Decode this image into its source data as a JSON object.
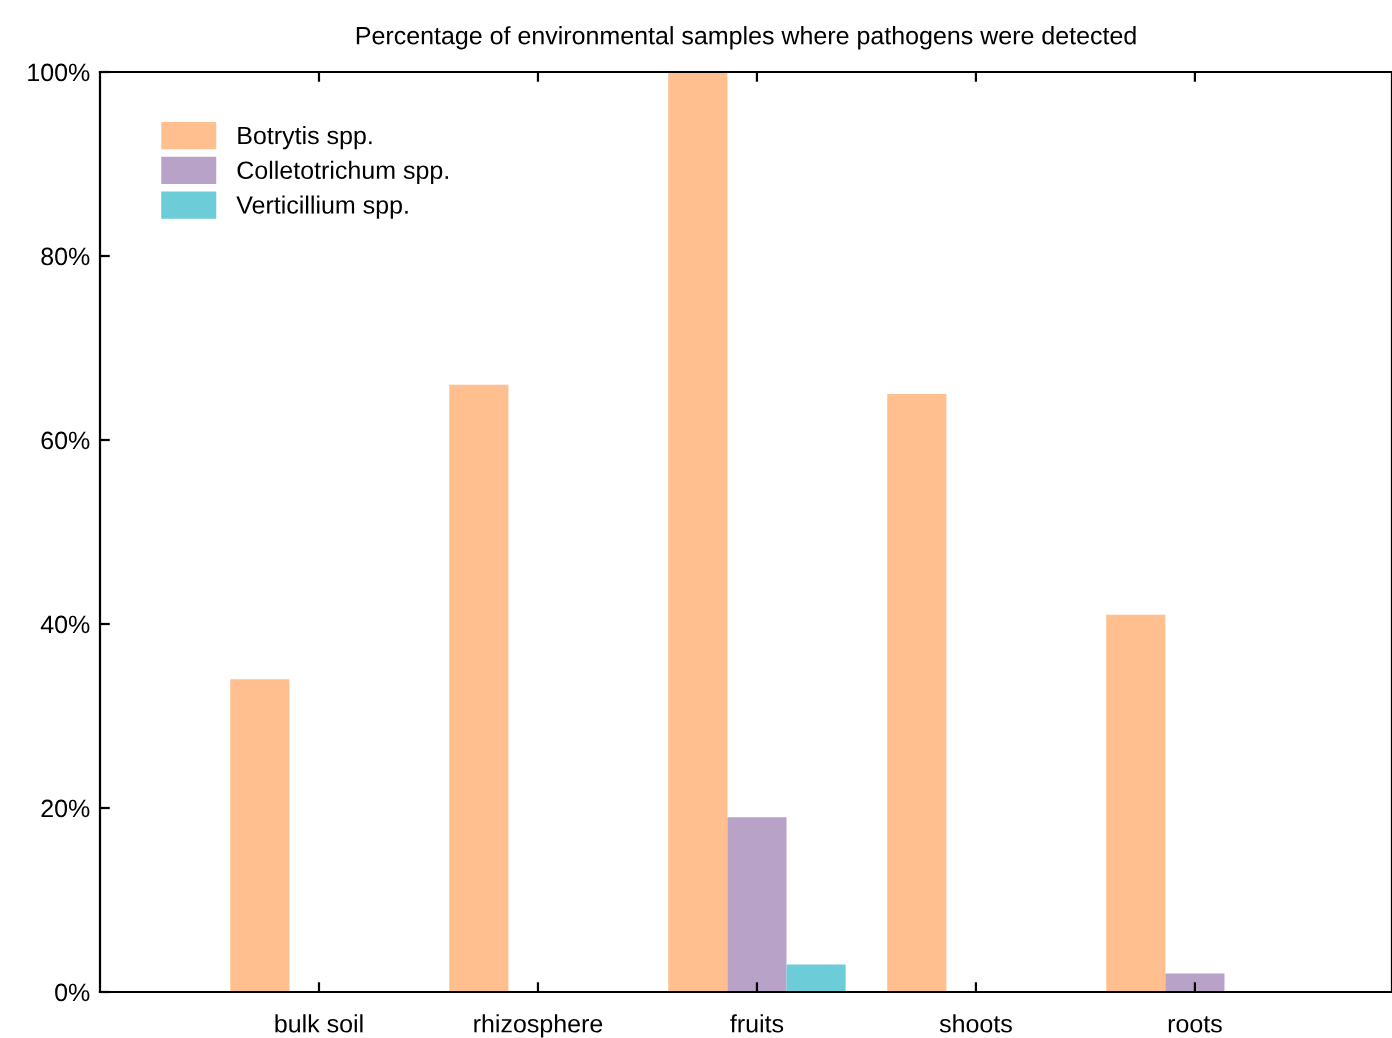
{
  "chart_data": {
    "type": "bar",
    "title": "Percentage of environmental samples where pathogens were detected",
    "categories": [
      "bulk soil",
      "rhizosphere",
      "fruits",
      "shoots",
      "roots"
    ],
    "series": [
      {
        "name": "Botrytis spp.",
        "color": "#ffbf8e",
        "values": [
          34,
          66,
          100,
          65,
          41
        ]
      },
      {
        "name": "Colletotrichum spp.",
        "color": "#b8a2c8",
        "values": [
          0,
          0,
          19,
          0,
          2
        ]
      },
      {
        "name": "Verticillium spp.",
        "color": "#6cccd8",
        "values": [
          0,
          0,
          3,
          0,
          0
        ]
      }
    ],
    "ylim": [
      0,
      100
    ],
    "yticks": [
      {
        "value": 0,
        "label": "0%"
      },
      {
        "value": 20,
        "label": "20%"
      },
      {
        "value": 40,
        "label": "40%"
      },
      {
        "value": 60,
        "label": "60%"
      },
      {
        "value": 80,
        "label": "80%"
      },
      {
        "value": 100,
        "label": "100%"
      }
    ],
    "legend": "top left"
  }
}
